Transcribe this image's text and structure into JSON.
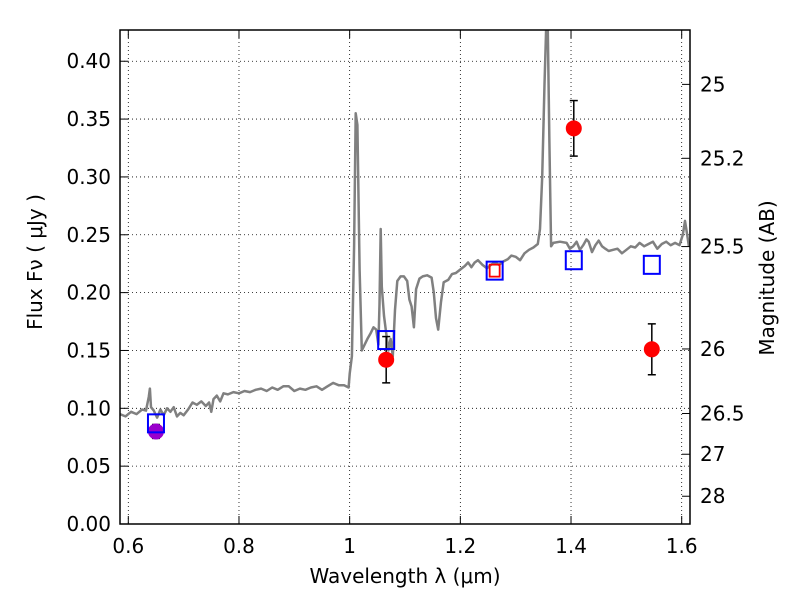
{
  "chart_data": {
    "type": "scatter",
    "xlabel": "Wavelength  λ (μm)",
    "ylabel_left": "Flux  Fν  ( μJy )",
    "ylabel_right": "Magnitude (AB)",
    "xlim": [
      0.585,
      1.615
    ],
    "ylim": [
      0.0,
      0.427
    ],
    "grid": true,
    "x_ticks": [
      0.6,
      0.8,
      1.0,
      1.2,
      1.4,
      1.6
    ],
    "x_tick_labels": [
      "0.6",
      "0.8",
      "1",
      "1.2",
      "1.4",
      "1.6"
    ],
    "y_ticks": [
      0.0,
      0.05,
      0.1,
      0.15,
      0.2,
      0.25,
      0.3,
      0.35,
      0.4
    ],
    "y_tick_labels": [
      "0.00",
      "0.05",
      "0.10",
      "0.15",
      "0.20",
      "0.25",
      "0.30",
      "0.35",
      "0.40"
    ],
    "right_ticks": [
      {
        "label": "25",
        "flux": 0.38
      },
      {
        "label": "25.2",
        "flux": 0.3161
      },
      {
        "label": "25.5",
        "flux": 0.2398
      },
      {
        "label": "26",
        "flux": 0.1513
      },
      {
        "label": "26.5",
        "flux": 0.0955
      },
      {
        "label": "27",
        "flux": 0.0603
      },
      {
        "label": "28",
        "flux": 0.024
      }
    ],
    "series": [
      {
        "kind": "spectrum-line",
        "color": "#808080",
        "points": [
          [
            0.585,
            0.095
          ],
          [
            0.595,
            0.093
          ],
          [
            0.605,
            0.097
          ],
          [
            0.615,
            0.095
          ],
          [
            0.625,
            0.099
          ],
          [
            0.632,
            0.098
          ],
          [
            0.637,
            0.11
          ],
          [
            0.639,
            0.117
          ],
          [
            0.641,
            0.101
          ],
          [
            0.646,
            0.098
          ],
          [
            0.652,
            0.092
          ],
          [
            0.658,
            0.099
          ],
          [
            0.664,
            0.094
          ],
          [
            0.67,
            0.1
          ],
          [
            0.676,
            0.097
          ],
          [
            0.682,
            0.101
          ],
          [
            0.688,
            0.093
          ],
          [
            0.694,
            0.096
          ],
          [
            0.7,
            0.094
          ],
          [
            0.708,
            0.099
          ],
          [
            0.716,
            0.105
          ],
          [
            0.724,
            0.103
          ],
          [
            0.732,
            0.106
          ],
          [
            0.74,
            0.102
          ],
          [
            0.746,
            0.105
          ],
          [
            0.75,
            0.097
          ],
          [
            0.754,
            0.108
          ],
          [
            0.76,
            0.111
          ],
          [
            0.766,
            0.106
          ],
          [
            0.772,
            0.113
          ],
          [
            0.78,
            0.112
          ],
          [
            0.79,
            0.114
          ],
          [
            0.8,
            0.113
          ],
          [
            0.81,
            0.115
          ],
          [
            0.82,
            0.114
          ],
          [
            0.83,
            0.116
          ],
          [
            0.84,
            0.117
          ],
          [
            0.85,
            0.115
          ],
          [
            0.86,
            0.118
          ],
          [
            0.87,
            0.116
          ],
          [
            0.88,
            0.119
          ],
          [
            0.89,
            0.119
          ],
          [
            0.9,
            0.115
          ],
          [
            0.91,
            0.117
          ],
          [
            0.92,
            0.116
          ],
          [
            0.93,
            0.118
          ],
          [
            0.94,
            0.119
          ],
          [
            0.95,
            0.116
          ],
          [
            0.96,
            0.119
          ],
          [
            0.97,
            0.122
          ],
          [
            0.98,
            0.12
          ],
          [
            0.99,
            0.12
          ],
          [
            0.998,
            0.118
          ],
          [
            1.0,
            0.13
          ],
          [
            1.004,
            0.145
          ],
          [
            1.008,
            0.24
          ],
          [
            1.011,
            0.355
          ],
          [
            1.014,
            0.345
          ],
          [
            1.018,
            0.22
          ],
          [
            1.022,
            0.15
          ],
          [
            1.027,
            0.155
          ],
          [
            1.032,
            0.16
          ],
          [
            1.038,
            0.165
          ],
          [
            1.043,
            0.17
          ],
          [
            1.048,
            0.168
          ],
          [
            1.052,
            0.155
          ],
          [
            1.054,
            0.19
          ],
          [
            1.056,
            0.255
          ],
          [
            1.058,
            0.205
          ],
          [
            1.062,
            0.18
          ],
          [
            1.066,
            0.165
          ],
          [
            1.07,
            0.15
          ],
          [
            1.074,
            0.16
          ],
          [
            1.078,
            0.145
          ],
          [
            1.082,
            0.185
          ],
          [
            1.086,
            0.21
          ],
          [
            1.092,
            0.214
          ],
          [
            1.098,
            0.214
          ],
          [
            1.104,
            0.21
          ],
          [
            1.108,
            0.194
          ],
          [
            1.112,
            0.188
          ],
          [
            1.116,
            0.17
          ],
          [
            1.12,
            0.203
          ],
          [
            1.126,
            0.212
          ],
          [
            1.132,
            0.214
          ],
          [
            1.14,
            0.215
          ],
          [
            1.148,
            0.213
          ],
          [
            1.152,
            0.2
          ],
          [
            1.156,
            0.178
          ],
          [
            1.16,
            0.168
          ],
          [
            1.165,
            0.192
          ],
          [
            1.17,
            0.209
          ],
          [
            1.178,
            0.211
          ],
          [
            1.185,
            0.216
          ],
          [
            1.192,
            0.217
          ],
          [
            1.2,
            0.22
          ],
          [
            1.208,
            0.223
          ],
          [
            1.214,
            0.226
          ],
          [
            1.22,
            0.222
          ],
          [
            1.226,
            0.226
          ],
          [
            1.232,
            0.228
          ],
          [
            1.24,
            0.224
          ],
          [
            1.248,
            0.221
          ],
          [
            1.255,
            0.224
          ],
          [
            1.262,
            0.226
          ],
          [
            1.27,
            0.224
          ],
          [
            1.278,
            0.227
          ],
          [
            1.286,
            0.229
          ],
          [
            1.292,
            0.232
          ],
          [
            1.3,
            0.231
          ],
          [
            1.308,
            0.228
          ],
          [
            1.316,
            0.234
          ],
          [
            1.324,
            0.237
          ],
          [
            1.332,
            0.239
          ],
          [
            1.34,
            0.242
          ],
          [
            1.344,
            0.255
          ],
          [
            1.348,
            0.3
          ],
          [
            1.352,
            0.38
          ],
          [
            1.355,
            0.427
          ],
          [
            1.358,
            0.427
          ],
          [
            1.361,
            0.33
          ],
          [
            1.364,
            0.24
          ],
          [
            1.368,
            0.243
          ],
          [
            1.38,
            0.244
          ],
          [
            1.392,
            0.243
          ],
          [
            1.398,
            0.238
          ],
          [
            1.404,
            0.24
          ],
          [
            1.41,
            0.244
          ],
          [
            1.416,
            0.237
          ],
          [
            1.422,
            0.241
          ],
          [
            1.428,
            0.246
          ],
          [
            1.432,
            0.244
          ],
          [
            1.438,
            0.235
          ],
          [
            1.444,
            0.241
          ],
          [
            1.45,
            0.245
          ],
          [
            1.456,
            0.24
          ],
          [
            1.462,
            0.238
          ],
          [
            1.468,
            0.236
          ],
          [
            1.476,
            0.237
          ],
          [
            1.484,
            0.238
          ],
          [
            1.492,
            0.234
          ],
          [
            1.5,
            0.237
          ],
          [
            1.508,
            0.24
          ],
          [
            1.516,
            0.239
          ],
          [
            1.524,
            0.243
          ],
          [
            1.532,
            0.24
          ],
          [
            1.54,
            0.242
          ],
          [
            1.548,
            0.244
          ],
          [
            1.556,
            0.238
          ],
          [
            1.564,
            0.242
          ],
          [
            1.572,
            0.244
          ],
          [
            1.58,
            0.241
          ],
          [
            1.588,
            0.243
          ],
          [
            1.596,
            0.241
          ],
          [
            1.602,
            0.25
          ],
          [
            1.606,
            0.262
          ],
          [
            1.61,
            0.25
          ],
          [
            1.613,
            0.24
          ]
        ]
      },
      {
        "kind": "model-squares-blue",
        "color": "#0000ff",
        "points": [
          [
            0.65,
            0.087
          ],
          [
            1.066,
            0.159
          ],
          [
            1.405,
            0.228
          ],
          [
            1.546,
            0.224
          ]
        ]
      },
      {
        "kind": "model-square-red",
        "color": "#ff0000",
        "points": [
          [
            1.262,
            0.219
          ]
        ]
      },
      {
        "kind": "observed-points",
        "color": "#ff0000",
        "points": [
          {
            "x": 0.65,
            "y": 0.08,
            "err": 0.006,
            "color": "#9900cc"
          },
          {
            "x": 1.066,
            "y": 0.142,
            "err": 0.02,
            "color": "#ff0000"
          },
          {
            "x": 1.405,
            "y": 0.342,
            "err": 0.024,
            "color": "#ff0000"
          },
          {
            "x": 1.546,
            "y": 0.151,
            "err": 0.022,
            "color": "#ff0000"
          }
        ]
      }
    ]
  }
}
